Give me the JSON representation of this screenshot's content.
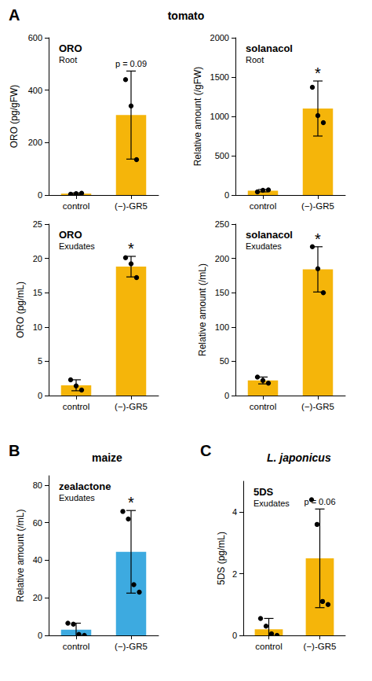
{
  "panels": [
    {
      "label": "A",
      "title": "tomato"
    },
    {
      "label": "B",
      "title": "maize"
    },
    {
      "label": "C",
      "title": "L. japonicus"
    }
  ],
  "chart_data": [
    {
      "type": "bar",
      "panel": "A",
      "title": "ORO",
      "subtitle": "Root",
      "ylabel": "ORO (pg/gFW)",
      "categories": [
        "control",
        "(−)-GR5"
      ],
      "values": [
        5,
        305
      ],
      "errors": [
        3,
        168
      ],
      "points": [
        [
          3,
          5,
          7
        ],
        [
          440,
          340,
          135
        ]
      ],
      "color": "#F5B50A",
      "ylim": [
        0,
        600
      ],
      "yticks": [
        0,
        200,
        400,
        600
      ],
      "grid": false,
      "annotations": [
        {
          "category": "(−)-GR5",
          "text": "p = 0.09"
        }
      ]
    },
    {
      "type": "bar",
      "panel": "A",
      "title": "solanacol",
      "subtitle": "Root",
      "ylabel": "Relative amount (/gFW)",
      "categories": [
        "control",
        "(−)-GR5"
      ],
      "values": [
        55,
        1100
      ],
      "errors": [
        15,
        350
      ],
      "points": [
        [
          40,
          60,
          65
        ],
        [
          1370,
          1010,
          920
        ]
      ],
      "color": "#F5B50A",
      "ylim": [
        0,
        2000
      ],
      "yticks": [
        0,
        500,
        1000,
        1500,
        2000
      ],
      "grid": false,
      "annotations": [
        {
          "category": "(−)-GR5",
          "text": "*"
        }
      ]
    },
    {
      "type": "bar",
      "panel": "A",
      "title": "ORO",
      "subtitle": "Exudates",
      "ylabel": "ORO (pg/mL)",
      "categories": [
        "control",
        "(−)-GR5"
      ],
      "values": [
        1.5,
        18.8
      ],
      "errors": [
        0.8,
        1.5
      ],
      "points": [
        [
          2.3,
          1.4,
          0.8
        ],
        [
          20.1,
          19.2,
          17.2
        ]
      ],
      "color": "#F5B50A",
      "ylim": [
        0,
        25
      ],
      "yticks": [
        0,
        5,
        10,
        15,
        20,
        25
      ],
      "grid": false,
      "annotations": [
        {
          "category": "(−)-GR5",
          "text": "*"
        }
      ]
    },
    {
      "type": "bar",
      "panel": "A",
      "title": "solanacol",
      "subtitle": "Exudates",
      "ylabel": "Relative amount (/mL)",
      "categories": [
        "control",
        "(−)-GR5"
      ],
      "values": [
        22,
        184
      ],
      "errors": [
        5,
        33
      ],
      "points": [
        [
          27,
          22,
          18
        ],
        [
          217,
          185,
          150
        ]
      ],
      "color": "#F5B50A",
      "ylim": [
        0,
        250
      ],
      "yticks": [
        0,
        50,
        100,
        150,
        200,
        250
      ],
      "grid": false,
      "annotations": [
        {
          "category": "(−)-GR5",
          "text": "*"
        }
      ]
    },
    {
      "type": "bar",
      "panel": "B",
      "title": "zealactone",
      "subtitle": "Exudates",
      "ylabel": "Relative amount (/mL)",
      "categories": [
        "control",
        "(−)-GR5"
      ],
      "values": [
        3,
        44.5
      ],
      "errors": [
        3.5,
        22
      ],
      "points": [
        [
          6.5,
          6,
          0.5,
          0
        ],
        [
          66,
          62,
          27,
          23
        ]
      ],
      "color": "#3DAAE0",
      "ylim": [
        0,
        85
      ],
      "yticks": [
        0,
        20,
        40,
        60,
        80
      ],
      "grid": false,
      "annotations": [
        {
          "category": "(−)-GR5",
          "text": "*"
        }
      ]
    },
    {
      "type": "bar",
      "panel": "C",
      "title": "5DS",
      "subtitle": "Exudates",
      "ylabel": "5DS (pg/mL)",
      "categories": [
        "control",
        "(−)-GR5"
      ],
      "values": [
        0.2,
        2.5
      ],
      "errors": [
        0.35,
        1.6
      ],
      "points": [
        [
          0.55,
          0.3,
          0.05,
          0
        ],
        [
          4.4,
          3.6,
          1.1,
          1.0
        ]
      ],
      "color": "#F5B50A",
      "ylim": [
        0,
        5
      ],
      "yticks": [
        0,
        2,
        4
      ],
      "grid": false,
      "annotations": [
        {
          "category": "(−)-GR5",
          "text": "p = 0.06"
        }
      ]
    }
  ]
}
